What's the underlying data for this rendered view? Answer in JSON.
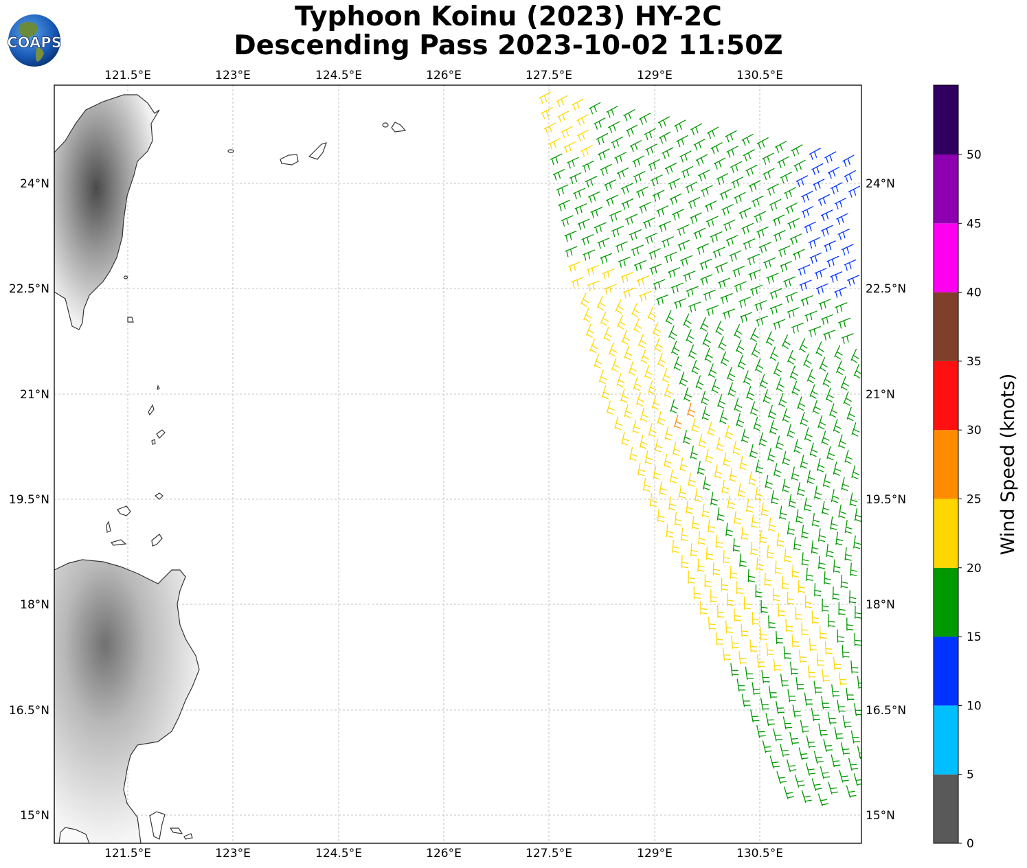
{
  "header": {
    "title_line1": "Typhoon Koinu (2023) HY-2C",
    "title_line2": "Descending Pass 2023-10-02 11:50Z",
    "logo_text": "COAPS"
  },
  "map": {
    "lon_range": [
      120.2,
      131.7
    ],
    "lat_range": [
      14.6,
      25.4
    ],
    "gridlines": true,
    "lon_ticks": [
      "121.5°E",
      "123°E",
      "124.5°E",
      "126°E",
      "127.5°E",
      "129°E",
      "130.5°E"
    ],
    "lat_ticks": [
      "24°N",
      "22.5°N",
      "21°N",
      "19.5°N",
      "18°N",
      "16.5°N",
      "15°N"
    ],
    "land_shading": "grayscale terrain",
    "coastline_color": "#333333"
  },
  "colorbar": {
    "label": "Wind Speed (knots)",
    "tick_labels": [
      "0",
      "5",
      "10",
      "15",
      "20",
      "25",
      "30",
      "35",
      "40",
      "45",
      "50"
    ],
    "colors": [
      "#595959",
      "#00bfff",
      "#0033ff",
      "#009900",
      "#ffd700",
      "#ff8c00",
      "#ff1010",
      "#7f3f2a",
      "#ff00f0",
      "#8c00b0",
      "#300060"
    ]
  },
  "winds": {
    "pass": "descending swath east of 127°E",
    "colors_by_speed": {
      "10-15": "#0033ff",
      "15-20": "#009900",
      "20-25": "#ffd700",
      "25-30": "#ff8c00"
    }
  }
}
